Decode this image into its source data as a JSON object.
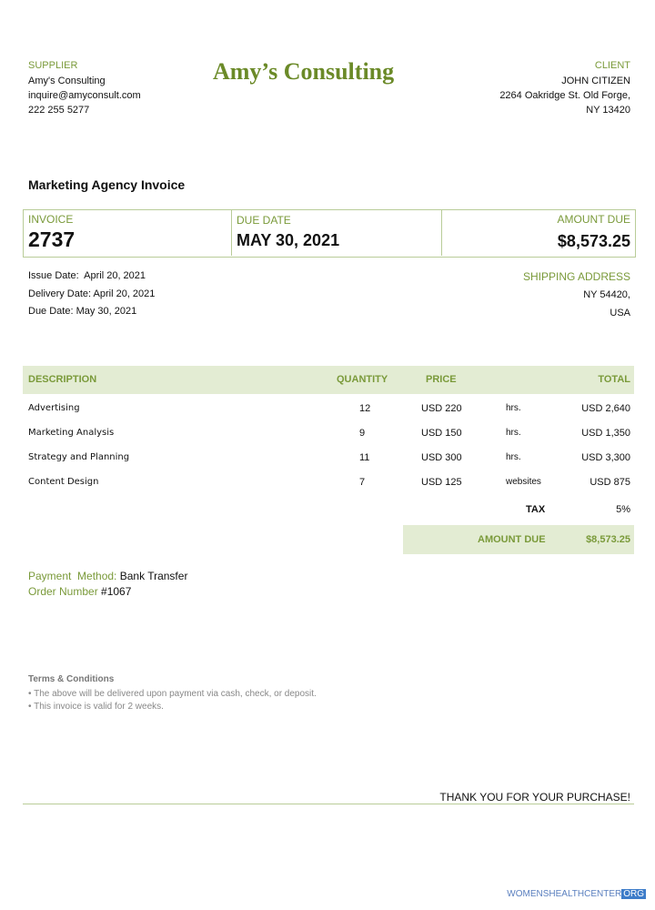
{
  "supplier": {
    "label": "SUPPLIER",
    "name": "Amy's Consulting",
    "email": "inquire@amyconsult.com",
    "phone": "222 255 5277"
  },
  "brand": "Amy’s Consulting",
  "client": {
    "label": "CLIENT",
    "name": "JOHN CITIZEN",
    "address": [
      "2264 Oakridge St. Old Forge,",
      "NY 13420"
    ]
  },
  "title": "Marketing Agency Invoice",
  "summary": {
    "invoice_label": "INVOICE",
    "invoice_number": "2737",
    "due_date_label": "DUE DATE",
    "due_date": "MAY 30, 2021",
    "amount_due_label": "AMOUNT DUE",
    "amount_due": "$8,573.25"
  },
  "dates": [
    "Issue Date:  April 20, 2021",
    "Delivery Date: April 20, 2021",
    "Due Date: May 30, 2021"
  ],
  "shipping": {
    "label": "SHIPPING ADDRESS",
    "lines": [
      "NY 54420,",
      "USA"
    ]
  },
  "table": {
    "headers": [
      "DESCRIPTION",
      "QUANTITY",
      "PRICE",
      "TOTAL"
    ],
    "rows": [
      [
        "Advertising",
        "12",
        "USD 220",
        "hrs.",
        "USD 2,640"
      ],
      [
        "Marketing Analysis",
        "9",
        "USD 150",
        "hrs.",
        "USD 1,350"
      ],
      [
        "Strategy and Planning",
        "11",
        "USD 300",
        "hrs.",
        "USD 3,300"
      ],
      [
        "Content Design",
        "7",
        "USD 125",
        "websites",
        "USD 875"
      ]
    ]
  },
  "tax": {
    "label": "TAX",
    "value": "5%"
  },
  "total": {
    "label": "AMOUNT DUE",
    "value": "$8,573.25"
  },
  "payment": {
    "label": "Payment  Method:",
    "value": "Bank Transfer"
  },
  "order": {
    "label": "Order Number",
    "value": "#1067"
  },
  "terms": {
    "title": "Terms & Conditions",
    "items": [
      "• The above will be delivered upon payment via cash, check, or deposit.",
      "• This invoice is valid for 2 weeks."
    ]
  },
  "thanks": "THANK YOU FOR YOUR PURCHASE!",
  "watermark": {
    "text": "WOMENSHEALTHCENTER",
    "tld": "ORG"
  }
}
